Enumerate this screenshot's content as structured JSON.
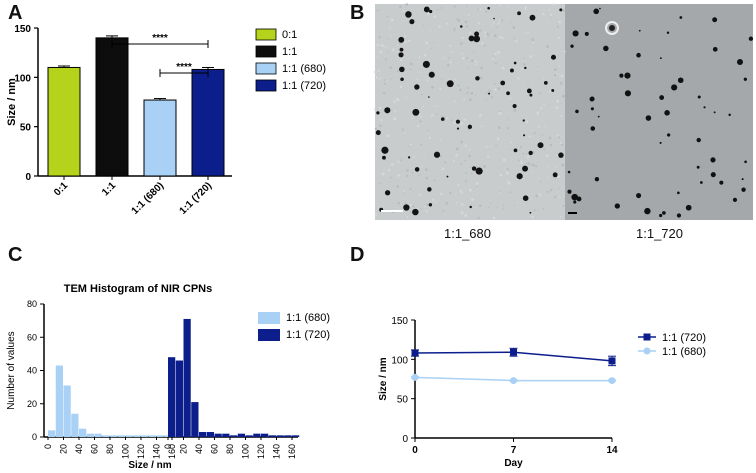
{
  "panels": {
    "a": "A",
    "b": "B",
    "c": "C",
    "d": "D"
  },
  "colors": {
    "lime": "#b5d31a",
    "black": "#0d0d0d",
    "light_blue": "#a9d1f5",
    "dark_blue": "#0b1e8c",
    "tem_left": "#c9cccd",
    "tem_right": "#a4a8aa"
  },
  "micrographs": {
    "left_label": "1:1_680",
    "right_label": "1:1_720"
  },
  "chart_data": [
    {
      "type": "bar",
      "panel": "A",
      "categories": [
        "0:1",
        "1:1",
        "1:1 (680)",
        "1:1 (720)"
      ],
      "values": [
        110,
        140,
        77,
        108
      ],
      "errors": [
        1.5,
        2,
        1.5,
        2
      ],
      "colors": [
        "#b5d31a",
        "#0d0d0d",
        "#a9d1f5",
        "#0b1e8c"
      ],
      "legend": [
        "0:1",
        "1:1",
        "1:1 (680)",
        "1:1 (720)"
      ],
      "ylabel": "Size / nm",
      "ylim": [
        0,
        150
      ],
      "yticks": [
        0,
        50,
        100,
        150
      ],
      "significance": [
        {
          "from": 1,
          "to": 3,
          "label": "****"
        },
        {
          "from": 2,
          "to": 3,
          "label": "****"
        }
      ]
    },
    {
      "type": "bar",
      "panel": "C",
      "title": "TEM Histogram of NIR CPNs",
      "xlabel": "Size / nm",
      "ylabel": "Number of values",
      "ylim": [
        0,
        80
      ],
      "yticks": [
        0,
        20,
        40,
        60,
        80
      ],
      "xtick_labels": [
        "0",
        "20",
        "40",
        "60",
        "80",
        "100",
        "120",
        "140",
        "160",
        "0",
        "20",
        "40",
        "60",
        "80",
        "100",
        "120",
        "140",
        "160"
      ],
      "bin_width": 10,
      "series": [
        {
          "name": "1:1 (680)",
          "color": "#a9d1f5",
          "values": [
            4,
            43,
            31,
            14,
            5,
            2,
            2,
            1,
            1,
            1,
            1,
            1,
            1,
            1,
            1,
            1,
            1
          ]
        },
        {
          "name": "1:1 (720)",
          "color": "#0b1e8c",
          "values": [
            48,
            46,
            71,
            21,
            3,
            3,
            2,
            2,
            1,
            2,
            1,
            2,
            2,
            1,
            1,
            1,
            1
          ]
        }
      ]
    },
    {
      "type": "line",
      "panel": "D",
      "x": [
        0,
        7,
        14
      ],
      "xlabel": "Day",
      "ylabel": "Size / nm",
      "ylim": [
        0,
        150
      ],
      "yticks": [
        0,
        50,
        100,
        150
      ],
      "xticks": [
        0,
        7,
        14
      ],
      "series": [
        {
          "name": "1:1 (720)",
          "color": "#0b1e8c",
          "marker": "square",
          "values": [
            108,
            109,
            98
          ],
          "errors": [
            4,
            5,
            6
          ]
        },
        {
          "name": "1:1 (680)",
          "color": "#a9d1f5",
          "marker": "circle",
          "values": [
            77,
            73,
            73
          ],
          "errors": [
            1,
            1,
            1
          ]
        }
      ]
    }
  ]
}
